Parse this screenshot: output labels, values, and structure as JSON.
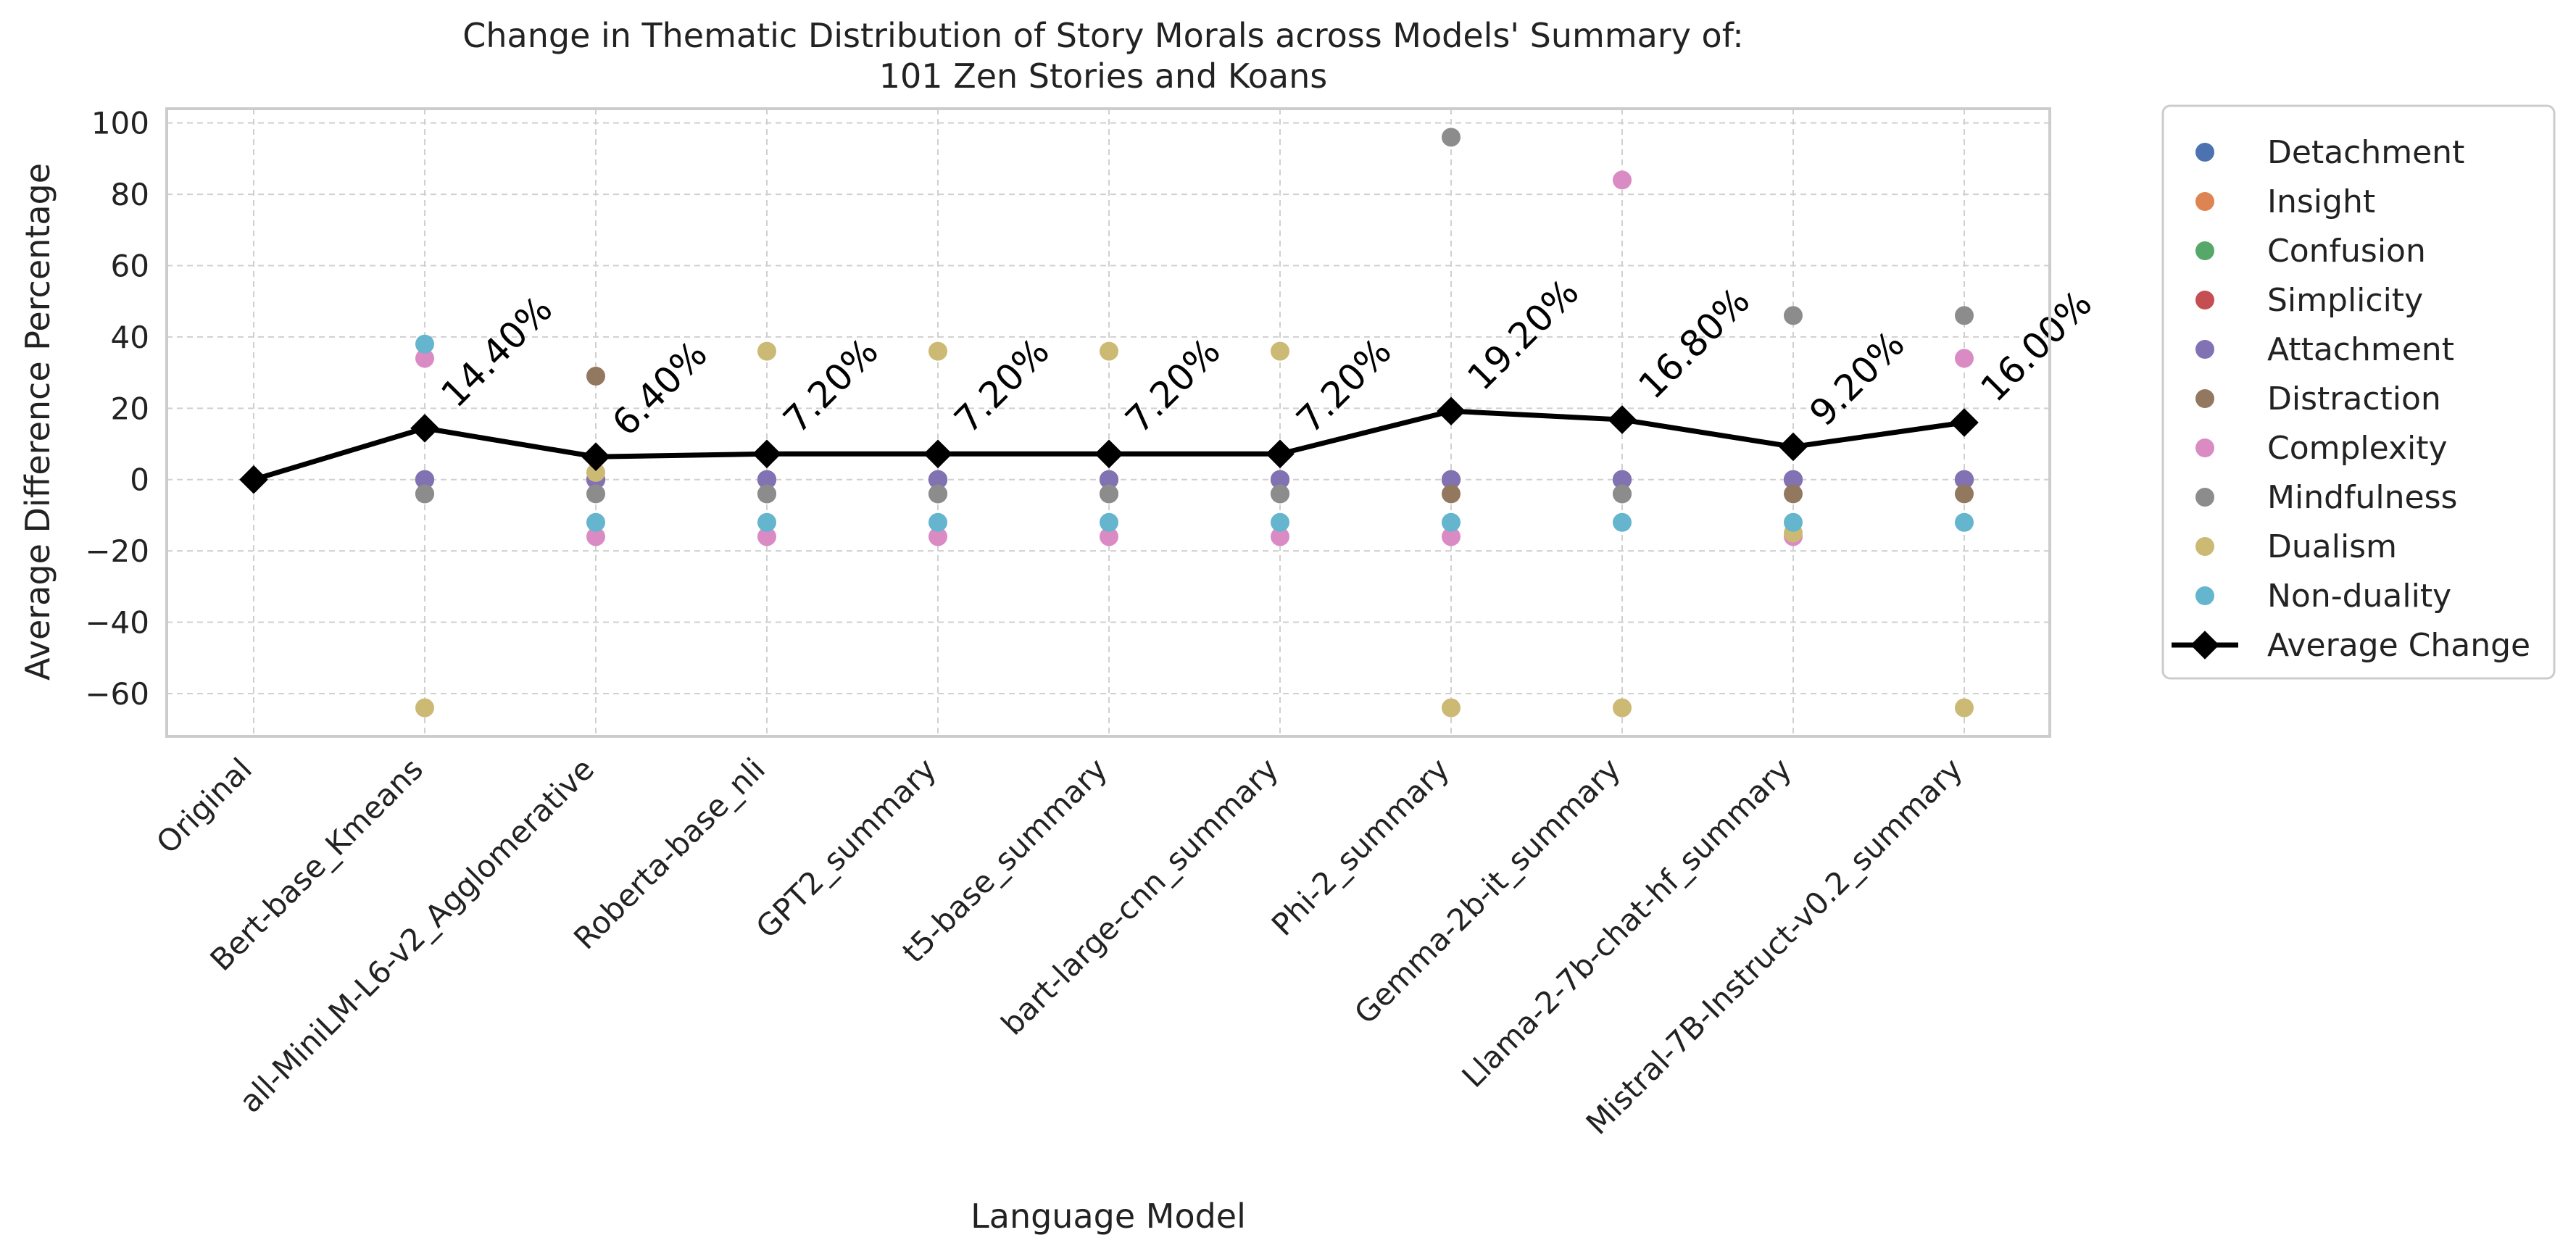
{
  "chart_data": {
    "type": "scatter",
    "title_line1": "Change in Thematic Distribution of Story Morals across Models' Summary of:",
    "title_line2": "101 Zen Stories and Koans",
    "xlabel": "Language Model",
    "ylabel": "Average Difference Percentage",
    "ylim": [
      -72,
      104
    ],
    "yticks": [
      -60,
      -40,
      -20,
      0,
      20,
      40,
      60,
      80,
      100
    ],
    "grid": true,
    "legend_position": "outside-right",
    "categories": [
      "Original",
      "Bert-base_Kmeans",
      "all-MiniLM-L6-v2_Agglomerative",
      "Roberta-base_nli",
      "GPT2_summary",
      "t5-base_summary",
      "bart-large-cnn_summary",
      "Phi-2_summary",
      "Gemma-2b-it_summary",
      "Llama-2-7b-chat-hf_summary",
      "Mistral-7B-Instruct-v0.2_summary"
    ],
    "series": [
      {
        "name": "Detachment",
        "color": "#4c72b0",
        "values": [
          0,
          0,
          0,
          0,
          0,
          0,
          0,
          0,
          0,
          0,
          0
        ]
      },
      {
        "name": "Insight",
        "color": "#dd8452",
        "values": [
          0,
          0,
          0,
          0,
          0,
          0,
          0,
          0,
          0,
          0,
          0
        ]
      },
      {
        "name": "Confusion",
        "color": "#55a868",
        "values": [
          0,
          0,
          0,
          0,
          0,
          0,
          0,
          0,
          0,
          0,
          0
        ]
      },
      {
        "name": "Simplicity",
        "color": "#c44e52",
        "values": [
          0,
          0,
          0,
          0,
          0,
          0,
          0,
          0,
          0,
          0,
          0
        ]
      },
      {
        "name": "Attachment",
        "color": "#8172b3",
        "values": [
          0,
          0,
          0,
          0,
          0,
          0,
          0,
          0,
          0,
          0,
          0
        ]
      },
      {
        "name": "Distraction",
        "color": "#937860",
        "values": [
          0,
          -4,
          29,
          -4,
          -4,
          -4,
          -4,
          -4,
          -4,
          -4,
          -4
        ]
      },
      {
        "name": "Complexity",
        "color": "#da8bc3",
        "values": [
          0,
          34,
          -16,
          -16,
          -16,
          -16,
          -16,
          -16,
          84,
          -16,
          34
        ]
      },
      {
        "name": "Mindfulness",
        "color": "#8c8c8c",
        "values": [
          0,
          -4,
          -4,
          -4,
          -4,
          -4,
          -4,
          96,
          -4,
          46,
          46
        ]
      },
      {
        "name": "Dualism",
        "color": "#ccb974",
        "values": [
          0,
          -64,
          2,
          36,
          36,
          36,
          36,
          -64,
          -64,
          -15,
          -64
        ]
      },
      {
        "name": "Non-duality",
        "color": "#64b5cd",
        "values": [
          0,
          38,
          -12,
          -12,
          -12,
          -12,
          -12,
          -12,
          -12,
          -12,
          -12
        ]
      }
    ],
    "average": {
      "name": "Average Change",
      "color": "#000000",
      "values": [
        0,
        14.4,
        6.4,
        7.2,
        7.2,
        7.2,
        7.2,
        19.2,
        16.8,
        9.2,
        16.0
      ],
      "labels": [
        "",
        "14.40%",
        "6.40%",
        "7.20%",
        "7.20%",
        "7.20%",
        "7.20%",
        "19.20%",
        "16.80%",
        "9.20%",
        "16.00%"
      ]
    }
  }
}
